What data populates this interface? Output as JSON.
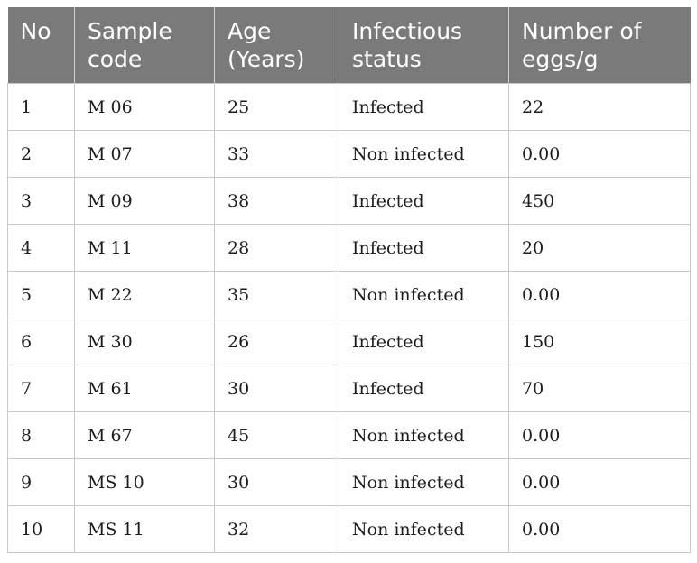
{
  "table": {
    "headers": [
      "No",
      "Sample code",
      "Age (Years)",
      "Infectious status",
      "Number of eggs/g"
    ],
    "rows": [
      [
        "1",
        "M 06",
        "25",
        "Infected",
        "22"
      ],
      [
        "2",
        "M 07",
        "33",
        "Non infected",
        "0.00"
      ],
      [
        "3",
        "M 09",
        "38",
        "Infected",
        "450"
      ],
      [
        "4",
        "M 11",
        "28",
        "Infected",
        "20"
      ],
      [
        "5",
        "M 22",
        "35",
        "Non infected",
        "0.00"
      ],
      [
        "6",
        "M 30",
        "26",
        "Infected",
        "150"
      ],
      [
        "7",
        "M 61",
        "30",
        "Infected",
        "70"
      ],
      [
        "8",
        "M 67",
        "45",
        "Non infected",
        "0.00"
      ],
      [
        "9",
        "MS 10",
        "30",
        "Non infected",
        "0.00"
      ],
      [
        "10",
        "MS 11",
        "32",
        "Non infected",
        "0.00"
      ]
    ]
  },
  "colors": {
    "header_background": "#7a7a7a",
    "header_text": "#ffffff",
    "grid_lines": "#c9c9c9",
    "body_text": "#1c1c1c"
  }
}
